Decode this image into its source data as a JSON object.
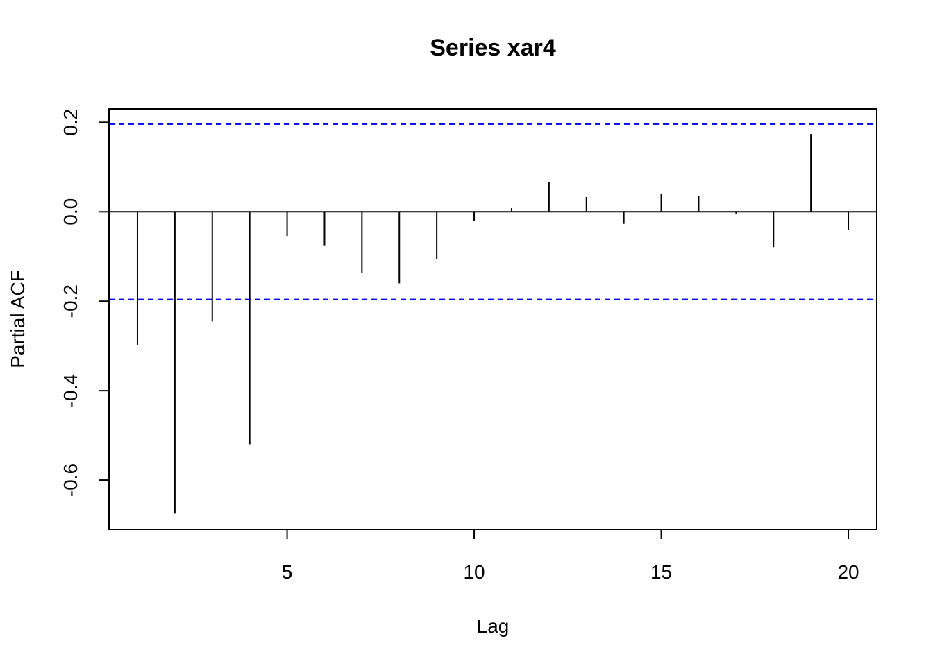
{
  "chart_data": {
    "type": "bar",
    "title": "Series  xar4",
    "xlabel": "Lag",
    "ylabel": "Partial ACF",
    "x": [
      1,
      2,
      3,
      4,
      5,
      6,
      7,
      8,
      9,
      10,
      11,
      12,
      13,
      14,
      15,
      16,
      17,
      18,
      19,
      20
    ],
    "values": [
      -0.298,
      -0.675,
      -0.245,
      -0.52,
      -0.054,
      -0.075,
      -0.136,
      -0.16,
      -0.105,
      -0.021,
      0.008,
      0.066,
      0.033,
      -0.027,
      0.04,
      0.035,
      -0.004,
      -0.079,
      0.174,
      -0.041
    ],
    "xlim": [
      0.24,
      20.76
    ],
    "ylim": [
      -0.71,
      0.23
    ],
    "x_ticks": [
      5,
      10,
      15,
      20
    ],
    "y_ticks": [
      -0.6,
      -0.4,
      -0.2,
      0.0,
      0.2
    ],
    "x_tick_labels": [
      "5",
      "10",
      "15",
      "20"
    ],
    "y_tick_labels": [
      "-0.6",
      "-0.4",
      "-0.2",
      "0.0",
      "0.2"
    ],
    "confidence_bound": 0.196,
    "colors": {
      "spikes": "#000000",
      "confidence": "#0000ff",
      "zero_line": "#000000",
      "frame": "#000000"
    }
  }
}
